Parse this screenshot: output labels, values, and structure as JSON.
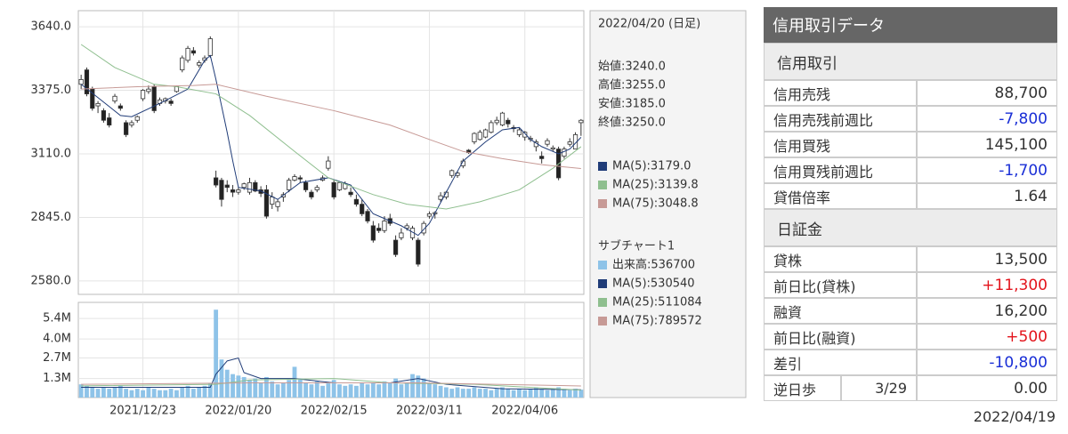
{
  "chart_data": [
    {
      "type": "candlestick",
      "categories": [
        null,
        null,
        null,
        null,
        null,
        null,
        null,
        null,
        null,
        null,
        null,
        "2021/12/23",
        null,
        null,
        null,
        null,
        null,
        null,
        null,
        null,
        null,
        null,
        null,
        null,
        null,
        null,
        null,
        null,
        "2022/01/20",
        null,
        null,
        null,
        null,
        null,
        null,
        null,
        null,
        null,
        null,
        null,
        null,
        null,
        null,
        null,
        null,
        "2022/02/15",
        null,
        null,
        null,
        null,
        null,
        null,
        null,
        null,
        null,
        null,
        null,
        null,
        null,
        null,
        null,
        null,
        "2022/03/11",
        null,
        null,
        null,
        null,
        null,
        null,
        null,
        null,
        null,
        null,
        null,
        null,
        null,
        null,
        null,
        null,
        "2022/04/06",
        null,
        null,
        null,
        null,
        null,
        null,
        null,
        null,
        null,
        null
      ],
      "date_label": "2022/04/20 (日足)",
      "ohlc_labels": [
        "始値:3240.0",
        "高値:3255.0",
        "安値:3185.0",
        "終値:3250.0"
      ],
      "open": [
        3400,
        3460,
        3380,
        3310,
        3290,
        3260,
        3330,
        3310,
        3240,
        3230,
        3250,
        3340,
        3370,
        3390,
        3320,
        3330,
        3330,
        3370,
        3460,
        3500,
        3540,
        3480,
        3500,
        3520,
        3010,
        3000,
        2980,
        2960,
        2950,
        2970,
        2950,
        2990,
        2960,
        2960,
        2900,
        2890,
        2930,
        2960,
        3000,
        3010,
        2990,
        2950,
        2960,
        3000,
        3050,
        2990,
        2960,
        2965,
        2950,
        2920,
        2900,
        2870,
        2810,
        2800,
        2790,
        2840,
        2750,
        2760,
        2800,
        2760,
        2750,
        2780,
        2850,
        2860,
        2920,
        2930,
        3020,
        3020,
        3060,
        3125,
        3160,
        3170,
        3180,
        3200,
        3240,
        3230,
        3250,
        3220,
        3190,
        3180,
        3170,
        3140,
        3100,
        3150,
        3130,
        3130,
        3100,
        3150,
        3130,
        3240
      ],
      "high": [
        3440,
        3470,
        3390,
        3330,
        3300,
        3280,
        3360,
        3320,
        3250,
        3250,
        3270,
        3380,
        3395,
        3400,
        3345,
        3345,
        3340,
        3395,
        3520,
        3560,
        3555,
        3500,
        3520,
        3600,
        3040,
        3010,
        3000,
        2980,
        2970,
        2990,
        3010,
        3000,
        2975,
        2980,
        2950,
        2920,
        2950,
        3010,
        3025,
        3020,
        3000,
        2960,
        2980,
        3020,
        3100,
        3000,
        2995,
        2995,
        2970,
        2940,
        2920,
        2880,
        2830,
        2820,
        2850,
        2860,
        2770,
        2800,
        2820,
        2810,
        2760,
        2830,
        2870,
        2870,
        2950,
        2955,
        3045,
        3040,
        3090,
        3130,
        3200,
        3210,
        3215,
        3250,
        3265,
        3285,
        3260,
        3230,
        3220,
        3205,
        3185,
        3170,
        3120,
        3175,
        3145,
        3140,
        3140,
        3175,
        3200,
        3255
      ],
      "low": [
        3380,
        3350,
        3290,
        3280,
        3240,
        3220,
        3320,
        3290,
        3180,
        3220,
        3240,
        3330,
        3360,
        3280,
        3310,
        3320,
        3310,
        3365,
        3450,
        3490,
        3520,
        3470,
        3490,
        3510,
        2970,
        2890,
        2950,
        2930,
        2940,
        2960,
        2940,
        2950,
        2930,
        2840,
        2880,
        2870,
        2910,
        2950,
        2995,
        2990,
        2950,
        2920,
        2950,
        2995,
        3040,
        2920,
        2955,
        2960,
        2930,
        2890,
        2850,
        2820,
        2740,
        2780,
        2780,
        2810,
        2680,
        2750,
        2790,
        2750,
        2640,
        2770,
        2840,
        2840,
        2910,
        2920,
        3010,
        3010,
        3050,
        3110,
        3150,
        3165,
        3175,
        3195,
        3230,
        3225,
        3220,
        3200,
        3180,
        3165,
        3160,
        3120,
        3070,
        3140,
        3120,
        3000,
        3090,
        3140,
        3130,
        3185
      ],
      "close": [
        3420,
        3360,
        3300,
        3320,
        3250,
        3230,
        3350,
        3300,
        3190,
        3240,
        3265,
        3375,
        3380,
        3290,
        3335,
        3340,
        3320,
        3390,
        3510,
        3550,
        3530,
        3490,
        3510,
        3590,
        2980,
        2920,
        2970,
        2950,
        2960,
        2985,
        2990,
        2955,
        2945,
        2850,
        2930,
        2910,
        2940,
        3000,
        3015,
        3005,
        2960,
        2930,
        2970,
        3010,
        3080,
        2930,
        2990,
        2985,
        2940,
        2900,
        2860,
        2830,
        2750,
        2790,
        2830,
        2820,
        2690,
        2780,
        2810,
        2800,
        2650,
        2820,
        2860,
        2865,
        2935,
        2950,
        3040,
        3030,
        3080,
        3115,
        3195,
        3200,
        3210,
        3240,
        3250,
        3280,
        3235,
        3215,
        3210,
        3200,
        3175,
        3160,
        3090,
        3165,
        3135,
        3010,
        3130,
        3160,
        3190,
        3250
      ],
      "series": [
        {
          "name": "MA(5):3179.0",
          "color": "#203c78",
          "x": [
            0,
            7,
            9,
            14,
            19,
            22,
            23,
            24,
            25,
            26,
            27,
            28,
            32,
            35,
            39,
            44,
            48,
            52,
            57,
            60,
            62,
            65,
            68,
            72,
            75,
            78,
            80,
            82,
            85,
            87,
            89
          ],
          "values": [
            3400,
            3270,
            3265,
            3320,
            3380,
            3500,
            3520,
            3420,
            3310,
            3200,
            3080,
            2970,
            2955,
            2920,
            2990,
            3010,
            2980,
            2860,
            2810,
            2770,
            2820,
            2950,
            3080,
            3160,
            3210,
            3220,
            3170,
            3140,
            3110,
            3130,
            3179
          ]
        },
        {
          "name": "MA(25):3139.8",
          "color": "#8fbf8f",
          "x": [
            0,
            6,
            13,
            17,
            24,
            30,
            38,
            44,
            52,
            58,
            65,
            71,
            78,
            84,
            89
          ],
          "values": [
            3566,
            3470,
            3400,
            3390,
            3360,
            3270,
            3120,
            3010,
            2940,
            2900,
            2880,
            2910,
            2960,
            3050,
            3139.8
          ]
        },
        {
          "name": "MA(75):3048.8",
          "color": "#c79a96",
          "x": [
            0,
            10,
            20,
            24,
            33,
            45,
            55,
            62,
            68,
            75,
            82,
            89
          ],
          "values": [
            3380,
            3390,
            3395,
            3400,
            3350,
            3290,
            3230,
            3170,
            3120,
            3090,
            3065,
            3048.8
          ]
        }
      ],
      "ylim": [
        2524,
        3707
      ],
      "yticks": [
        {
          "value": 2580,
          "label": "2580.0"
        },
        {
          "value": 2845,
          "label": "2845.0"
        },
        {
          "value": 3110,
          "label": "3110.0"
        },
        {
          "value": 3375,
          "label": "3375.0"
        },
        {
          "value": 3640,
          "label": "3640.0"
        }
      ],
      "grid": true
    },
    {
      "type": "bar",
      "title": "サブチャート1",
      "series": [
        {
          "name": "出来高:536700",
          "color": "#8ec3e8",
          "values": [
            0.9,
            0.8,
            0.7,
            0.6,
            0.7,
            0.6,
            0.7,
            0.8,
            0.6,
            0.5,
            0.6,
            0.5,
            0.7,
            0.6,
            0.5,
            0.5,
            0.6,
            0.5,
            0.7,
            0.8,
            0.6,
            0.7,
            0.8,
            1.0,
            6.0,
            2.6,
            1.9,
            1.6,
            1.5,
            1.4,
            1.2,
            1.3,
            1.0,
            1.4,
            1.1,
            0.9,
            1.0,
            1.2,
            2.1,
            1.3,
            1.0,
            0.9,
            1.1,
            0.8,
            1.0,
            1.2,
            0.9,
            0.8,
            0.9,
            0.8,
            1.0,
            0.9,
            1.0,
            0.9,
            1.1,
            1.0,
            1.3,
            0.9,
            1.0,
            1.6,
            1.5,
            1.3,
            1.0,
            0.9,
            0.8,
            0.7,
            0.6,
            0.7,
            0.6,
            0.6,
            0.7,
            0.6,
            0.6,
            0.5,
            0.6,
            0.7,
            0.6,
            0.5,
            0.6,
            0.5,
            0.6,
            0.7,
            0.6,
            0.5,
            0.6,
            0.7,
            0.6,
            0.5,
            0.6,
            0.54
          ]
        },
        {
          "name": "MA(5):530540",
          "color": "#203c78",
          "x": [
            0,
            23,
            24,
            26,
            28,
            29,
            32,
            38,
            45,
            55,
            60,
            65,
            75,
            89
          ],
          "values": [
            0.7,
            0.7,
            1.6,
            2.5,
            2.7,
            1.7,
            1.3,
            1.3,
            1.0,
            1.0,
            1.3,
            0.9,
            0.6,
            0.53
          ]
        },
        {
          "name": "MA(25):511084",
          "color": "#8fbf8f",
          "x": [
            0,
            24,
            30,
            45,
            55,
            70,
            89
          ],
          "values": [
            0.8,
            0.9,
            1.2,
            1.3,
            1.0,
            0.9,
            0.51
          ]
        },
        {
          "name": "MA(75):789572",
          "color": "#c79a96",
          "x": [
            0,
            30,
            60,
            89
          ],
          "values": [
            0.9,
            1.0,
            1.0,
            0.79
          ]
        }
      ],
      "ylim": [
        0,
        6.5
      ],
      "yticks": [
        {
          "value": 1.3,
          "label": "1.3M"
        },
        {
          "value": 2.7,
          "label": "2.7M"
        },
        {
          "value": 4.0,
          "label": "4.0M"
        },
        {
          "value": 5.4,
          "label": "5.4M"
        }
      ],
      "grid": true
    }
  ],
  "margin_table": {
    "title": "信用取引データ",
    "sections": [
      {
        "heading": "信用取引",
        "rows": [
          {
            "label": "信用売残",
            "value": "88,700"
          },
          {
            "label": "信用売残前週比",
            "value": "-7,800",
            "color": "#1a2fd6"
          },
          {
            "label": "信用買残",
            "value": "145,100"
          },
          {
            "label": "信用買残前週比",
            "value": "-1,700",
            "color": "#1a2fd6"
          },
          {
            "label": "貸借倍率",
            "value": "1.64"
          }
        ]
      },
      {
        "heading": "日証金",
        "rows": [
          {
            "label": "貸株",
            "value": "13,500"
          },
          {
            "label": "前日比(貸株)",
            "value": "+11,300",
            "color": "#e3141c"
          },
          {
            "label": "融資",
            "value": "16,200"
          },
          {
            "label": "前日比(融資)",
            "value": "+500",
            "color": "#e3141c"
          },
          {
            "label": "差引",
            "value": "-10,800",
            "color": "#1a2fd6"
          },
          {
            "label": "逆日歩",
            "date": "3/29",
            "value": "0.00"
          }
        ]
      }
    ],
    "footer_date": "2022/04/19"
  }
}
